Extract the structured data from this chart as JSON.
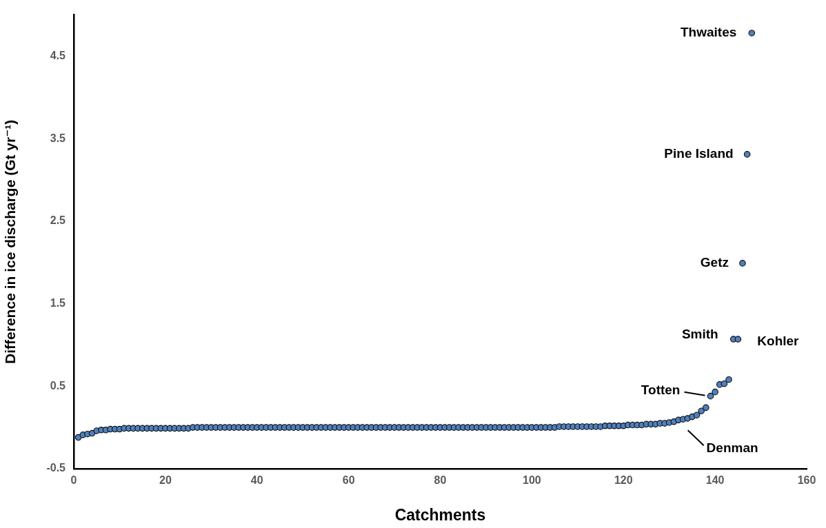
{
  "chart_data": {
    "type": "scatter",
    "xlabel": "Catchments",
    "ylabel": "Difference in ice discharge (Gt yr⁻¹)",
    "xlim": [
      0,
      160
    ],
    "xticks": [
      0,
      20,
      40,
      60,
      80,
      100,
      120,
      140,
      160
    ],
    "ylim": [
      -0.5,
      5
    ],
    "yticks": [
      -0.5,
      0.5,
      1.5,
      2.5,
      3.5,
      4.5
    ],
    "marker": "circle",
    "series": [
      {
        "color": "#4f81bd",
        "x": [
          1,
          2,
          3,
          4,
          5,
          6,
          7,
          8,
          9,
          10,
          11,
          12,
          13,
          14,
          15,
          16,
          17,
          18,
          19,
          20,
          21,
          22,
          23,
          24,
          25,
          26,
          27,
          28,
          29,
          30,
          31,
          32,
          33,
          34,
          35,
          36,
          37,
          38,
          39,
          40,
          41,
          42,
          43,
          44,
          45,
          46,
          47,
          48,
          49,
          50,
          51,
          52,
          53,
          54,
          55,
          56,
          57,
          58,
          59,
          60,
          61,
          62,
          63,
          64,
          65,
          66,
          67,
          68,
          69,
          70,
          71,
          72,
          73,
          74,
          75,
          76,
          77,
          78,
          79,
          80,
          81,
          82,
          83,
          84,
          85,
          86,
          87,
          88,
          89,
          90,
          91,
          92,
          93,
          94,
          95,
          96,
          97,
          98,
          99,
          100,
          101,
          102,
          103,
          104,
          105,
          106,
          107,
          108,
          109,
          110,
          111,
          112,
          113,
          114,
          115,
          116,
          117,
          118,
          119,
          120,
          121,
          122,
          123,
          124,
          125,
          126,
          127,
          128,
          129,
          130,
          131,
          132,
          133,
          134,
          135,
          136,
          137,
          138,
          139,
          140,
          141,
          142,
          143,
          144,
          145,
          146,
          147,
          148
        ],
        "values": [
          -0.12,
          -0.09,
          -0.08,
          -0.07,
          -0.04,
          -0.03,
          -0.03,
          -0.02,
          -0.02,
          -0.02,
          -0.01,
          -0.01,
          -0.01,
          -0.01,
          -0.01,
          -0.01,
          -0.01,
          -0.01,
          -0.01,
          -0.01,
          -0.01,
          -0.01,
          -0.01,
          -0.01,
          -0.01,
          0,
          0,
          0,
          0,
          0,
          0,
          0,
          0,
          0,
          0,
          0,
          0,
          0,
          0,
          0,
          0,
          0,
          0,
          0,
          0,
          0,
          0,
          0,
          0,
          0,
          0,
          0,
          0,
          0,
          0,
          0,
          0,
          0,
          0,
          0,
          0,
          0,
          0,
          0,
          0,
          0,
          0,
          0,
          0,
          0,
          0,
          0,
          0,
          0,
          0,
          0,
          0,
          0,
          0,
          0,
          0,
          0,
          0,
          0,
          0,
          0,
          0,
          0,
          0,
          0,
          0,
          0,
          0,
          0,
          0,
          0,
          0,
          0,
          0,
          0,
          0,
          0,
          0,
          0,
          0,
          0.01,
          0.01,
          0.01,
          0.01,
          0.01,
          0.01,
          0.01,
          0.01,
          0.01,
          0.01,
          0.02,
          0.02,
          0.02,
          0.02,
          0.02,
          0.03,
          0.03,
          0.03,
          0.03,
          0.04,
          0.04,
          0.04,
          0.05,
          0.05,
          0.06,
          0.07,
          0.09,
          0.1,
          0.11,
          0.13,
          0.15,
          0.2,
          0.24,
          0.38,
          0.43,
          0.52,
          0.53,
          0.58,
          1.07,
          1.07,
          1.99,
          3.31,
          4.78
        ]
      }
    ],
    "annotations": [
      {
        "text": "Thwaites",
        "x": 148,
        "y": 4.78
      },
      {
        "text": "Pine Island",
        "x": 147,
        "y": 3.31
      },
      {
        "text": "Getz",
        "x": 146,
        "y": 1.99
      },
      {
        "text": "Smith",
        "x": 144,
        "y": 1.07
      },
      {
        "text": "Kohler",
        "x": 145,
        "y": 1.07
      },
      {
        "text": "Totten",
        "x": 139,
        "y": 0.38
      },
      {
        "text": "Denman",
        "x": 133,
        "y": 0.1
      }
    ]
  }
}
